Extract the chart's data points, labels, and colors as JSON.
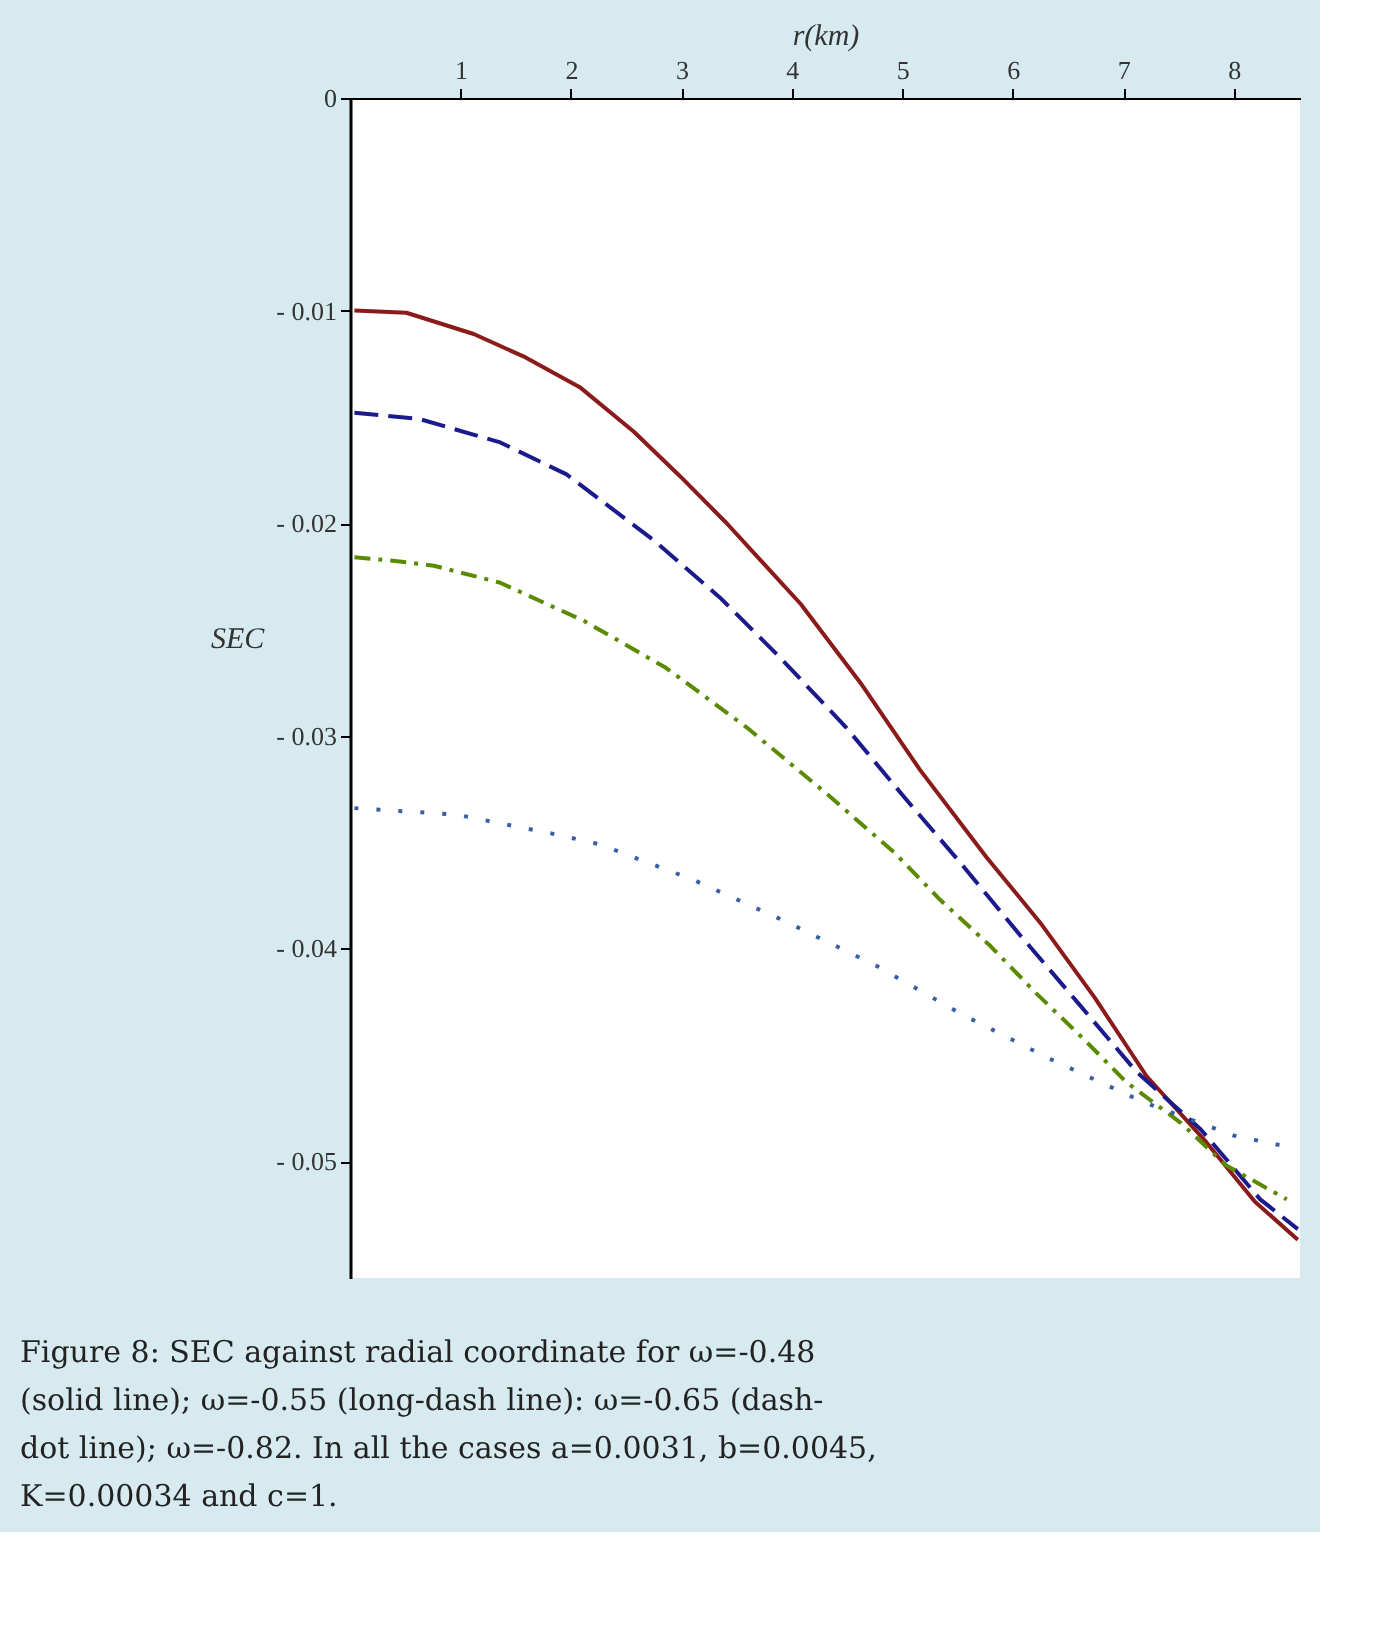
{
  "chart_data": {
    "type": "line",
    "xlabel": "r(km)",
    "ylabel": "SEC",
    "xlim": [
      0,
      8.6
    ],
    "xticks": [
      1,
      2,
      3,
      4,
      5,
      6,
      7,
      8
    ],
    "ylim": [
      -0.0555,
      0
    ],
    "yticks": [
      0,
      {
        "value": -0.01,
        "label": "- 0.01"
      },
      {
        "value": -0.02,
        "label": "- 0.02"
      },
      {
        "value": -0.03,
        "label": "- 0.03"
      },
      {
        "value": -0.04,
        "label": "- 0.04"
      },
      {
        "value": -0.05,
        "label": "- 0.05"
      }
    ],
    "grid": false,
    "marker": "none",
    "series": [
      {
        "color": "#8b1a1a",
        "line_style": "solid",
        "x": [
          0.04,
          0.51,
          1.12,
          1.59,
          2.08,
          2.57,
          2.99,
          3.41,
          4.08,
          4.62,
          5.16,
          5.76,
          6.25,
          6.74,
          7.21,
          7.75,
          8.19,
          8.58
        ],
        "values": [
          -0.01,
          -0.0101,
          -0.0111,
          -0.0122,
          -0.0136,
          -0.0157,
          -0.0178,
          -0.02,
          -0.0238,
          -0.0275,
          -0.0316,
          -0.0357,
          -0.0388,
          -0.0423,
          -0.046,
          -0.0491,
          -0.0519,
          -0.0537
        ]
      },
      {
        "color": "#1a1a8c",
        "line_style": "dashed",
        "x": [
          0.04,
          0.63,
          1.36,
          1.96,
          2.75,
          3.35,
          3.89,
          4.49,
          5.02,
          5.53,
          6.07,
          6.58,
          7.12,
          7.7,
          8.24,
          8.58
        ],
        "values": [
          -0.0148,
          -0.0151,
          -0.0162,
          -0.0177,
          -0.0208,
          -0.0235,
          -0.0263,
          -0.0296,
          -0.0329,
          -0.036,
          -0.0394,
          -0.0425,
          -0.0458,
          -0.0485,
          -0.0518,
          -0.0532
        ]
      },
      {
        "color": "#5a8a00",
        "line_style": "dashdot",
        "x": [
          0.04,
          0.45,
          0.76,
          1.36,
          2.12,
          2.86,
          3.59,
          4.31,
          4.93,
          5.34,
          5.8,
          6.21,
          6.61,
          7.03,
          7.52,
          7.93,
          8.48
        ],
        "values": [
          -0.0216,
          -0.0218,
          -0.022,
          -0.0228,
          -0.0246,
          -0.0268,
          -0.0296,
          -0.0327,
          -0.0355,
          -0.0377,
          -0.0399,
          -0.0421,
          -0.0441,
          -0.0463,
          -0.0482,
          -0.0502,
          -0.0518
        ]
      },
      {
        "color": "#3a5fa0",
        "line_style": "dotted",
        "x": [
          0.04,
          0.96,
          1.83,
          2.26,
          3.12,
          3.93,
          4.76,
          5.54,
          6.34,
          7.17,
          8.0,
          8.46
        ],
        "values": [
          -0.0334,
          -0.0337,
          -0.0346,
          -0.0351,
          -0.0368,
          -0.0387,
          -0.0408,
          -0.0431,
          -0.0452,
          -0.0472,
          -0.0488,
          -0.0493
        ]
      }
    ],
    "annotations": [
      "Figure 8: SEC against radial coordinate for ω=-0.48 (solid line); ω=-0.55 (long-dash line): ω=-0.65 (dash-dot line); ω=-0.82. In all the cases a=0.0031, b=0.0045, K=0.00034 and c=1."
    ]
  }
}
